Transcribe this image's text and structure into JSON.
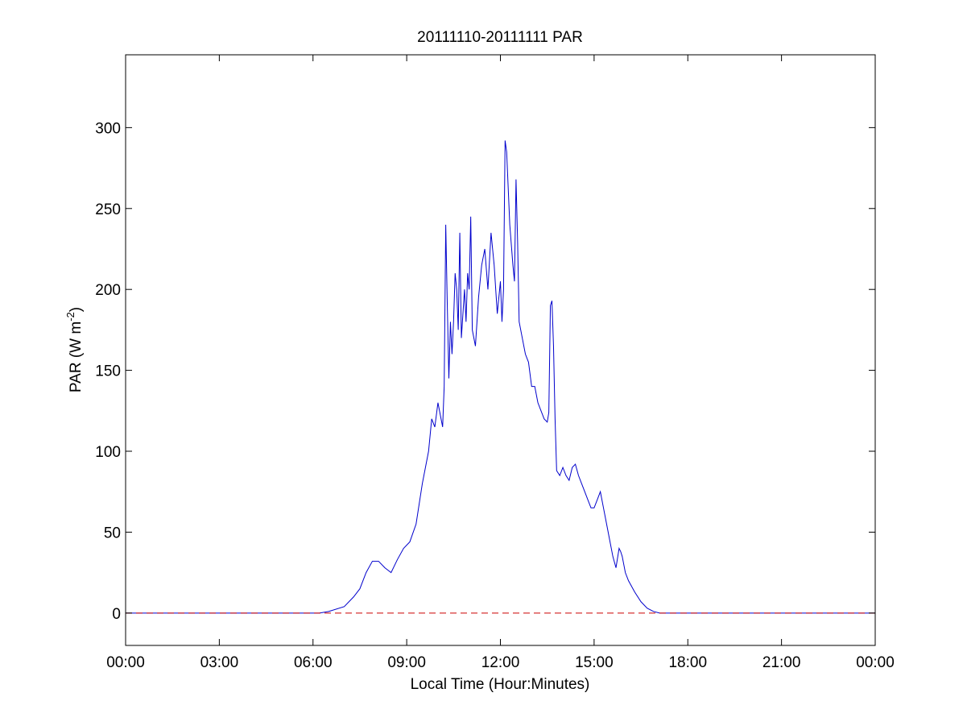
{
  "chart_data": {
    "type": "line",
    "title": "20111110-20111111 PAR",
    "xlabel": "Local Time (Hour:Minutes)",
    "ylabel": {
      "prefix": "PAR (W m",
      "superscript": "-2",
      "suffix": ")"
    },
    "xlim": [
      0,
      24
    ],
    "ylim": [
      -20,
      345
    ],
    "x_unit": "hours since 00:00 local time",
    "xticks": [
      {
        "value": 0,
        "label": "00:00"
      },
      {
        "value": 3,
        "label": "03:00"
      },
      {
        "value": 6,
        "label": "06:00"
      },
      {
        "value": 9,
        "label": "09:00"
      },
      {
        "value": 12,
        "label": "12:00"
      },
      {
        "value": 15,
        "label": "15:00"
      },
      {
        "value": 18,
        "label": "18:00"
      },
      {
        "value": 21,
        "label": "21:00"
      },
      {
        "value": 24,
        "label": "00:00"
      }
    ],
    "yticks": [
      {
        "value": 0,
        "label": "0"
      },
      {
        "value": 50,
        "label": "50"
      },
      {
        "value": 100,
        "label": "100"
      },
      {
        "value": 150,
        "label": "150"
      },
      {
        "value": 200,
        "label": "200"
      },
      {
        "value": 250,
        "label": "250"
      },
      {
        "value": 300,
        "label": "300"
      }
    ],
    "grid": false,
    "legend": "none",
    "series": [
      {
        "color": "#0000cc",
        "line_style": "solid",
        "x": [
          0,
          6.0,
          6.2,
          6.5,
          7.0,
          7.3,
          7.5,
          7.7,
          7.9,
          8.1,
          8.3,
          8.5,
          8.7,
          8.9,
          9.1,
          9.3,
          9.5,
          9.7,
          9.8,
          9.9,
          10.0,
          10.1,
          10.15,
          10.2,
          10.25,
          10.3,
          10.35,
          10.4,
          10.45,
          10.5,
          10.55,
          10.6,
          10.65,
          10.7,
          10.75,
          10.8,
          10.85,
          10.9,
          10.95,
          11.0,
          11.05,
          11.1,
          11.2,
          11.3,
          11.4,
          11.5,
          11.6,
          11.7,
          11.8,
          11.9,
          12.0,
          12.05,
          12.1,
          12.15,
          12.2,
          12.3,
          12.4,
          12.45,
          12.5,
          12.55,
          12.6,
          12.7,
          12.8,
          12.9,
          13.0,
          13.1,
          13.2,
          13.3,
          13.4,
          13.5,
          13.55,
          13.6,
          13.65,
          13.7,
          13.75,
          13.8,
          13.9,
          14.0,
          14.1,
          14.2,
          14.3,
          14.4,
          14.5,
          14.6,
          14.7,
          14.8,
          14.9,
          15.0,
          15.1,
          15.2,
          15.3,
          15.4,
          15.5,
          15.6,
          15.7,
          15.8,
          15.85,
          15.9,
          15.95,
          16.0,
          16.1,
          16.3,
          16.5,
          16.7,
          16.9,
          17.1,
          17.3,
          24
        ],
        "y": [
          0,
          0,
          0,
          1,
          4,
          10,
          15,
          25,
          32,
          32,
          28,
          25,
          33,
          40,
          44,
          55,
          80,
          100,
          120,
          115,
          130,
          120,
          115,
          140,
          240,
          190,
          145,
          180,
          160,
          180,
          210,
          200,
          175,
          235,
          170,
          185,
          200,
          180,
          210,
          200,
          245,
          175,
          165,
          195,
          215,
          225,
          200,
          235,
          215,
          185,
          205,
          180,
          200,
          292,
          285,
          240,
          215,
          205,
          268,
          230,
          180,
          170,
          160,
          155,
          140,
          140,
          130,
          125,
          120,
          118,
          124,
          190,
          193,
          165,
          120,
          88,
          85,
          90,
          85,
          82,
          90,
          92,
          85,
          80,
          75,
          70,
          65,
          65,
          70,
          75,
          65,
          55,
          45,
          35,
          28,
          40,
          38,
          35,
          30,
          25,
          20,
          13,
          7,
          3,
          1,
          0,
          0,
          0
        ]
      },
      {
        "color": "#cc0000",
        "line_style": "dashed",
        "x": [
          0,
          24
        ],
        "y": [
          0,
          0
        ]
      }
    ]
  }
}
